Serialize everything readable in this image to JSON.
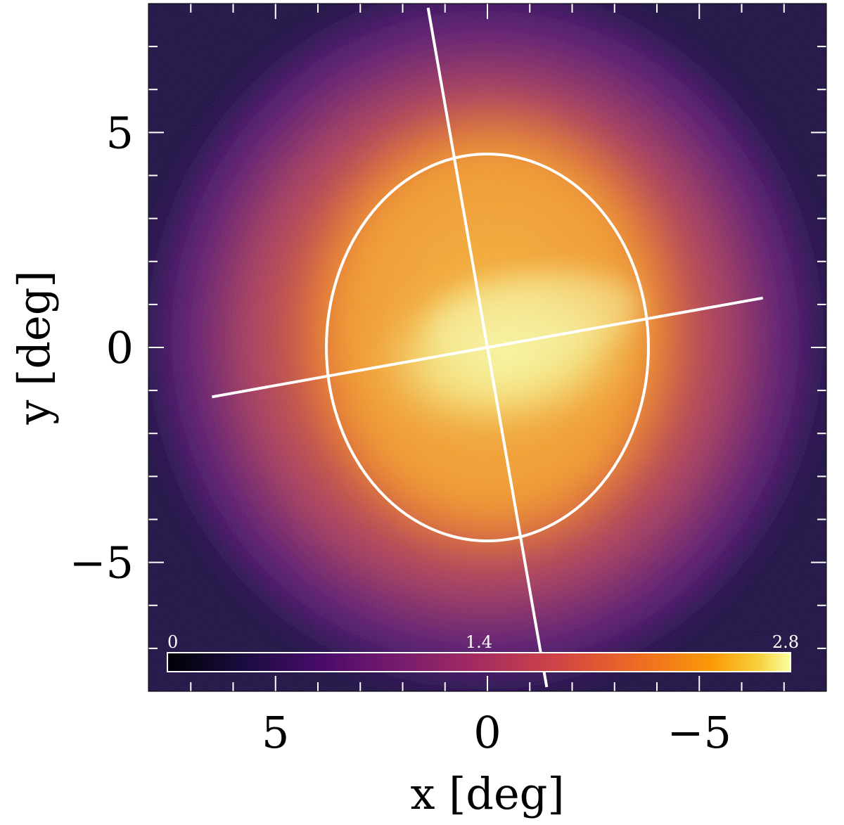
{
  "chart_data": {
    "type": "heatmap",
    "xlabel": "x [deg]",
    "ylabel": "y [deg]",
    "xlim": [
      8,
      -8
    ],
    "ylim": [
      -8,
      8
    ],
    "xticks": [
      {
        "value": 5,
        "label": "5"
      },
      {
        "value": 0,
        "label": "0"
      },
      {
        "value": -5,
        "label": "−5"
      }
    ],
    "yticks": [
      {
        "value": 5,
        "label": "5"
      },
      {
        "value": 0,
        "label": "0"
      },
      {
        "value": -5,
        "label": "−5"
      }
    ],
    "minor_tick_step": 1,
    "colormap": "inferno",
    "colorbar": {
      "min": 0,
      "max": 2.8,
      "ticks": [
        {
          "value": 0,
          "label": "0"
        },
        {
          "value": 1.4,
          "label": "1.4"
        },
        {
          "value": 2.8,
          "label": "2.8"
        }
      ],
      "placement": "bottom-inside"
    },
    "overlays": {
      "ellipse": {
        "center": [
          0,
          0
        ],
        "semi_axis_x": 3.8,
        "semi_axis_y": 4.5,
        "color": "#ffffff"
      },
      "line_major": {
        "from": [
          1.4,
          7.9
        ],
        "to": [
          -1.4,
          -7.9
        ],
        "color": "#ffffff"
      },
      "line_minor": {
        "from": [
          6.5,
          -1.15
        ],
        "to": [
          -6.5,
          1.15
        ],
        "color": "#ffffff"
      }
    },
    "colors": {
      "background": "#1b0c41",
      "core": "#fcffa4",
      "overlay": "#ffffff"
    }
  }
}
